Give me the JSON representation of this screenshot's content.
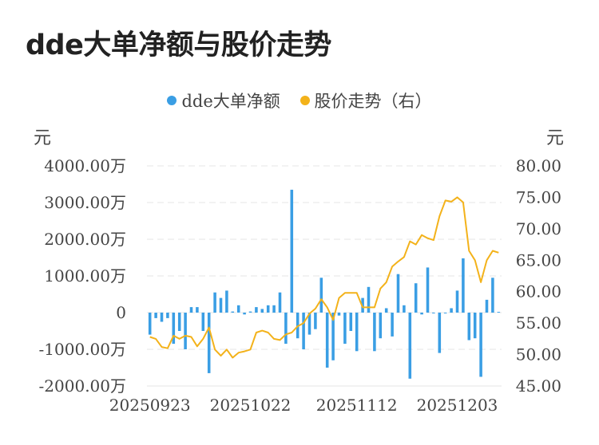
{
  "title": "dde大单净额与股价走势",
  "legend": [
    {
      "label": "dde大单净额",
      "color": "#3a9ee4"
    },
    {
      "label": "股价走势（右）",
      "color": "#f3b21a"
    }
  ],
  "units": {
    "left": "元",
    "right": "元"
  },
  "chart_data": {
    "type": "bar+line",
    "title": "dde大单净额与股价走势",
    "categories_shown": [
      "20250923",
      "20251022",
      "20251112",
      "20251203"
    ],
    "left_axis": {
      "ticks": [
        "4000.00万",
        "3000.00万",
        "2000.00万",
        "1000.00万",
        "0",
        "-1000.00万",
        "-2000.00万"
      ],
      "ylim": [
        -2000,
        4000
      ],
      "unit": "万"
    },
    "right_axis": {
      "ticks": [
        "80.00",
        "75.00",
        "70.00",
        "65.00",
        "60.00",
        "55.00",
        "50.00",
        "45.00"
      ],
      "ylim": [
        45,
        80
      ]
    },
    "label_indices": [
      0,
      17,
      35,
      52
    ],
    "series": [
      {
        "name": "dde大单净额",
        "type": "bar",
        "axis": "left",
        "values": [
          -600,
          -150,
          -250,
          -150,
          -850,
          -500,
          -1000,
          150,
          150,
          -500,
          -1650,
          550,
          400,
          600,
          30,
          200,
          -50,
          30,
          150,
          100,
          200,
          200,
          550,
          -850,
          3350,
          -700,
          -1000,
          -600,
          -450,
          950,
          -1500,
          -1300,
          -80,
          -850,
          -500,
          -1050,
          400,
          700,
          -1050,
          -700,
          120,
          -650,
          1050,
          200,
          -1800,
          800,
          -50,
          1230,
          0,
          -1100,
          0,
          120,
          600,
          1480,
          -750,
          -700,
          -1750,
          350,
          950,
          20
        ]
      },
      {
        "name": "股价走势（右）",
        "type": "line",
        "axis": "right",
        "values": [
          52.8,
          52.5,
          51.2,
          51.0,
          53.0,
          52.5,
          53.0,
          52.8,
          51.3,
          52.5,
          54.3,
          50.8,
          49.8,
          50.8,
          49.5,
          50.3,
          50.5,
          50.8,
          53.5,
          53.8,
          53.5,
          52.5,
          52.3,
          53.2,
          53.5,
          54.5,
          55.0,
          56.5,
          57.3,
          58.8,
          57.5,
          55.5,
          59.0,
          59.8,
          59.8,
          59.8,
          57.5,
          57.5,
          57.5,
          60.5,
          61.5,
          64.0,
          64.8,
          65.5,
          68.0,
          67.5,
          69.0,
          68.5,
          68.2,
          72.0,
          74.5,
          74.3,
          75.0,
          74.2,
          66.5,
          65.0,
          61.5,
          65.0,
          66.5,
          66.2
        ]
      }
    ]
  }
}
